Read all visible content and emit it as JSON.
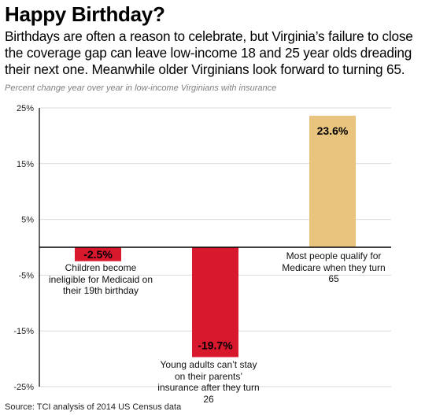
{
  "title": "Happy Birthday?",
  "subtitle": "Birthdays are often a reason to celebrate, but Virginia’s failure to close the coverage gap can leave low-income 18 and 25 year olds dreading their next one. Meanwhile older Virginians look forward to turning 65.",
  "note": "Percent change year over year in low-income Virginians with insurance",
  "source": "Source: TCI analysis of 2014 US Census data",
  "chart_data": {
    "type": "bar",
    "title": "Happy Birthday?",
    "ylabel": "",
    "xlabel": "",
    "ylim": [
      -25,
      25
    ],
    "yticks": [
      25,
      15,
      5,
      -5,
      -15,
      -25
    ],
    "ytick_labels": [
      "25%",
      "15%",
      "5%",
      "-5%",
      "-15%",
      "-25%"
    ],
    "grid": true,
    "categories": [
      "Children become ineligible for Medicaid on their 19th birthday",
      "Young adults can’t stay on their parents’ insurance after they turn 26",
      "Most people qualify for Medicare when they turn 65"
    ],
    "values": [
      -2.5,
      -19.7,
      23.6
    ],
    "value_labels": [
      "-2.5%",
      "-19.7%",
      "23.6%"
    ],
    "colors": [
      "#d8192d",
      "#d8192d",
      "#e8c47e"
    ]
  },
  "annotations": [
    "Children become ineligible for Medicaid on their 19th birthday",
    "Young adults can’t stay on their parents’ insurance after they turn 26",
    "Most people qualify for Medicare when they turn 65"
  ]
}
